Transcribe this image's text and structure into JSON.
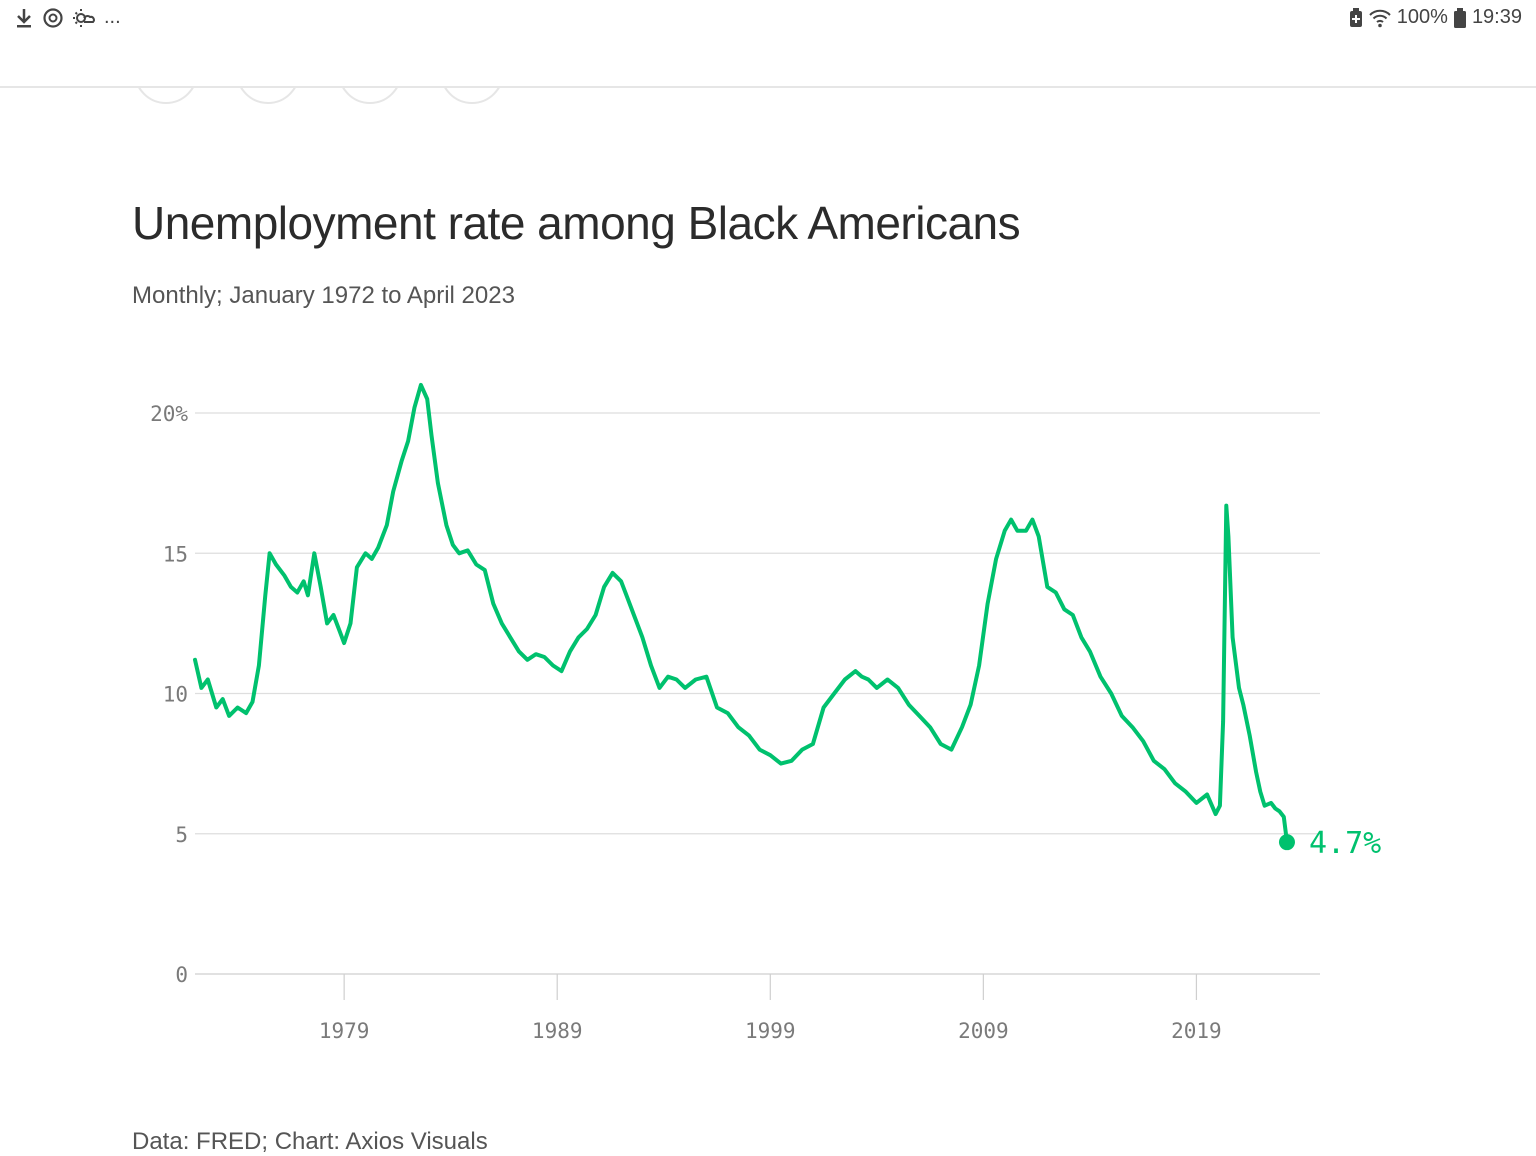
{
  "statusbar": {
    "left_icons": [
      "download-icon",
      "sync-icon",
      "weather-icon"
    ],
    "more": "...",
    "battery_percent": "100%",
    "time": "19:39"
  },
  "chart_data": {
    "type": "line",
    "title": "Unemployment rate among Black Americans",
    "subtitle": "Monthly; January 1972 to April 2023",
    "source": "Data: FRED; Chart: Axios Visuals",
    "xlabel": "",
    "ylabel": "",
    "xlim": [
      1972.0,
      2024.8
    ],
    "ylim": [
      0,
      20
    ],
    "y_ticks": [
      {
        "value": 0,
        "label": "0"
      },
      {
        "value": 5,
        "label": "5"
      },
      {
        "value": 10,
        "label": "10"
      },
      {
        "value": 15,
        "label": "15"
      },
      {
        "value": 20,
        "label": "20%"
      }
    ],
    "x_ticks": [
      {
        "value": 1979,
        "label": "1979"
      },
      {
        "value": 1989,
        "label": "1989"
      },
      {
        "value": 1999,
        "label": "1999"
      },
      {
        "value": 2009,
        "label": "2009"
      },
      {
        "value": 2019,
        "label": "2019"
      }
    ],
    "color": "#00c16e",
    "end_label": "4.7%",
    "end_point": {
      "x": 2023.25,
      "y": 4.7
    },
    "series": [
      {
        "name": "Unemployment rate",
        "x": [
          1972.0,
          1972.3,
          1972.6,
          1973.0,
          1973.3,
          1973.6,
          1974.0,
          1974.4,
          1974.7,
          1975.0,
          1975.3,
          1975.5,
          1975.8,
          1976.2,
          1976.5,
          1976.8,
          1977.1,
          1977.3,
          1977.6,
          1977.9,
          1978.2,
          1978.5,
          1978.8,
          1979.0,
          1979.3,
          1979.6,
          1980.0,
          1980.3,
          1980.6,
          1981.0,
          1981.3,
          1981.7,
          1982.0,
          1982.3,
          1982.6,
          1982.9,
          1983.1,
          1983.4,
          1983.8,
          1984.1,
          1984.4,
          1984.8,
          1985.2,
          1985.6,
          1986.0,
          1986.4,
          1986.8,
          1987.2,
          1987.6,
          1988.0,
          1988.4,
          1988.8,
          1989.2,
          1989.6,
          1990.0,
          1990.4,
          1990.8,
          1991.2,
          1991.6,
          1992.0,
          1992.3,
          1992.6,
          1993.0,
          1993.4,
          1993.8,
          1994.2,
          1994.6,
          1995.0,
          1995.5,
          1996.0,
          1996.5,
          1997.0,
          1997.5,
          1998.0,
          1998.5,
          1999.0,
          1999.5,
          2000.0,
          2000.5,
          2001.0,
          2001.5,
          2002.0,
          2002.5,
          2003.0,
          2003.3,
          2003.6,
          2004.0,
          2004.5,
          2005.0,
          2005.5,
          2006.0,
          2006.5,
          2007.0,
          2007.5,
          2008.0,
          2008.4,
          2008.8,
          2009.2,
          2009.6,
          2010.0,
          2010.3,
          2010.6,
          2011.0,
          2011.3,
          2011.6,
          2012.0,
          2012.4,
          2012.8,
          2013.2,
          2013.6,
          2014.0,
          2014.5,
          2015.0,
          2015.5,
          2016.0,
          2016.5,
          2017.0,
          2017.5,
          2018.0,
          2018.5,
          2019.0,
          2019.5,
          2019.9,
          2020.1,
          2020.25,
          2020.4,
          2020.5,
          2020.7,
          2021.0,
          2021.2,
          2021.5,
          2021.8,
          2022.0,
          2022.2,
          2022.5,
          2022.7,
          2022.9,
          2023.1,
          2023.25
        ],
        "values": [
          11.2,
          10.2,
          10.5,
          9.5,
          9.8,
          9.2,
          9.5,
          9.3,
          9.7,
          11.0,
          13.5,
          15.0,
          14.6,
          14.2,
          13.8,
          13.6,
          14.0,
          13.5,
          15.0,
          13.8,
          12.5,
          12.8,
          12.2,
          11.8,
          12.5,
          14.5,
          15.0,
          14.8,
          15.2,
          16.0,
          17.2,
          18.3,
          19.0,
          20.2,
          21.0,
          20.5,
          19.2,
          17.5,
          16.0,
          15.3,
          15.0,
          15.1,
          14.6,
          14.4,
          13.2,
          12.5,
          12.0,
          11.5,
          11.2,
          11.4,
          11.3,
          11.0,
          10.8,
          11.5,
          12.0,
          12.3,
          12.8,
          13.8,
          14.3,
          14.0,
          13.4,
          12.8,
          12.0,
          11.0,
          10.2,
          10.6,
          10.5,
          10.2,
          10.5,
          10.6,
          9.5,
          9.3,
          8.8,
          8.5,
          8.0,
          7.8,
          7.5,
          7.6,
          8.0,
          8.2,
          9.5,
          10.0,
          10.5,
          10.8,
          10.6,
          10.5,
          10.2,
          10.5,
          10.2,
          9.6,
          9.2,
          8.8,
          8.2,
          8.0,
          8.8,
          9.6,
          11.0,
          13.2,
          14.8,
          15.8,
          16.2,
          15.8,
          15.8,
          16.2,
          15.6,
          13.8,
          13.6,
          13.0,
          12.8,
          12.0,
          11.5,
          10.6,
          10.0,
          9.2,
          8.8,
          8.3,
          7.6,
          7.3,
          6.8,
          6.5,
          6.1,
          6.4,
          5.7,
          6.0,
          9.0,
          16.7,
          15.6,
          12.0,
          10.2,
          9.6,
          8.5,
          7.2,
          6.5,
          6.0,
          6.1,
          5.9,
          5.8,
          5.6,
          4.7
        ]
      }
    ]
  }
}
